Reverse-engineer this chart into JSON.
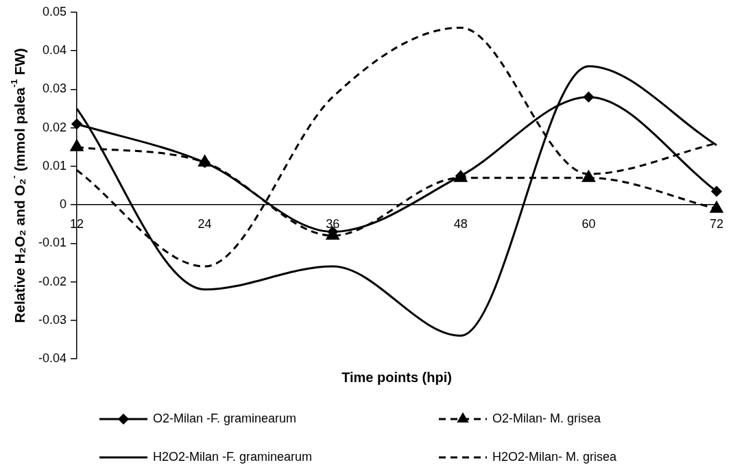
{
  "chart_data": {
    "type": "line",
    "xlabel": "Time points (hpi)",
    "ylabel": "Relative H₂O₂ and O₂$^{-}$ (mmol palea$^{-1}$ FW)",
    "categories": [
      "12",
      "24",
      "36",
      "48",
      "60",
      "72"
    ],
    "ylim": [
      -0.04,
      0.05
    ],
    "yticks": [
      -0.04,
      -0.03,
      -0.02,
      -0.01,
      0,
      0.01,
      0.02,
      0.03,
      0.04,
      0.05
    ],
    "grid": false,
    "legend": "bottom",
    "series": [
      {
        "name": "O2-Milan -F. graminearum",
        "color": "#000000",
        "marker": "diamond",
        "line_style": "solid",
        "values": [
          0.021,
          0.011,
          -0.007,
          0.0075,
          0.028,
          0.0035
        ]
      },
      {
        "name": "O2-Milan- M. grisea",
        "color": "#000000",
        "marker": "triangle",
        "line_style": "dashed",
        "values": [
          0.015,
          0.011,
          -0.008,
          0.007,
          0.007,
          -0.001
        ]
      },
      {
        "name": "H2O2-Milan -F. graminearum",
        "color": "#000000",
        "marker": "none",
        "line_style": "solid",
        "values": [
          0.025,
          -0.022,
          -0.016,
          -0.034,
          0.036,
          0.0155
        ]
      },
      {
        "name": "H2O2-Milan- M. grisea",
        "color": "#000000",
        "marker": "none",
        "line_style": "dashed",
        "values": [
          0.009,
          -0.016,
          0.028,
          0.046,
          0.008,
          0.016
        ]
      }
    ]
  }
}
